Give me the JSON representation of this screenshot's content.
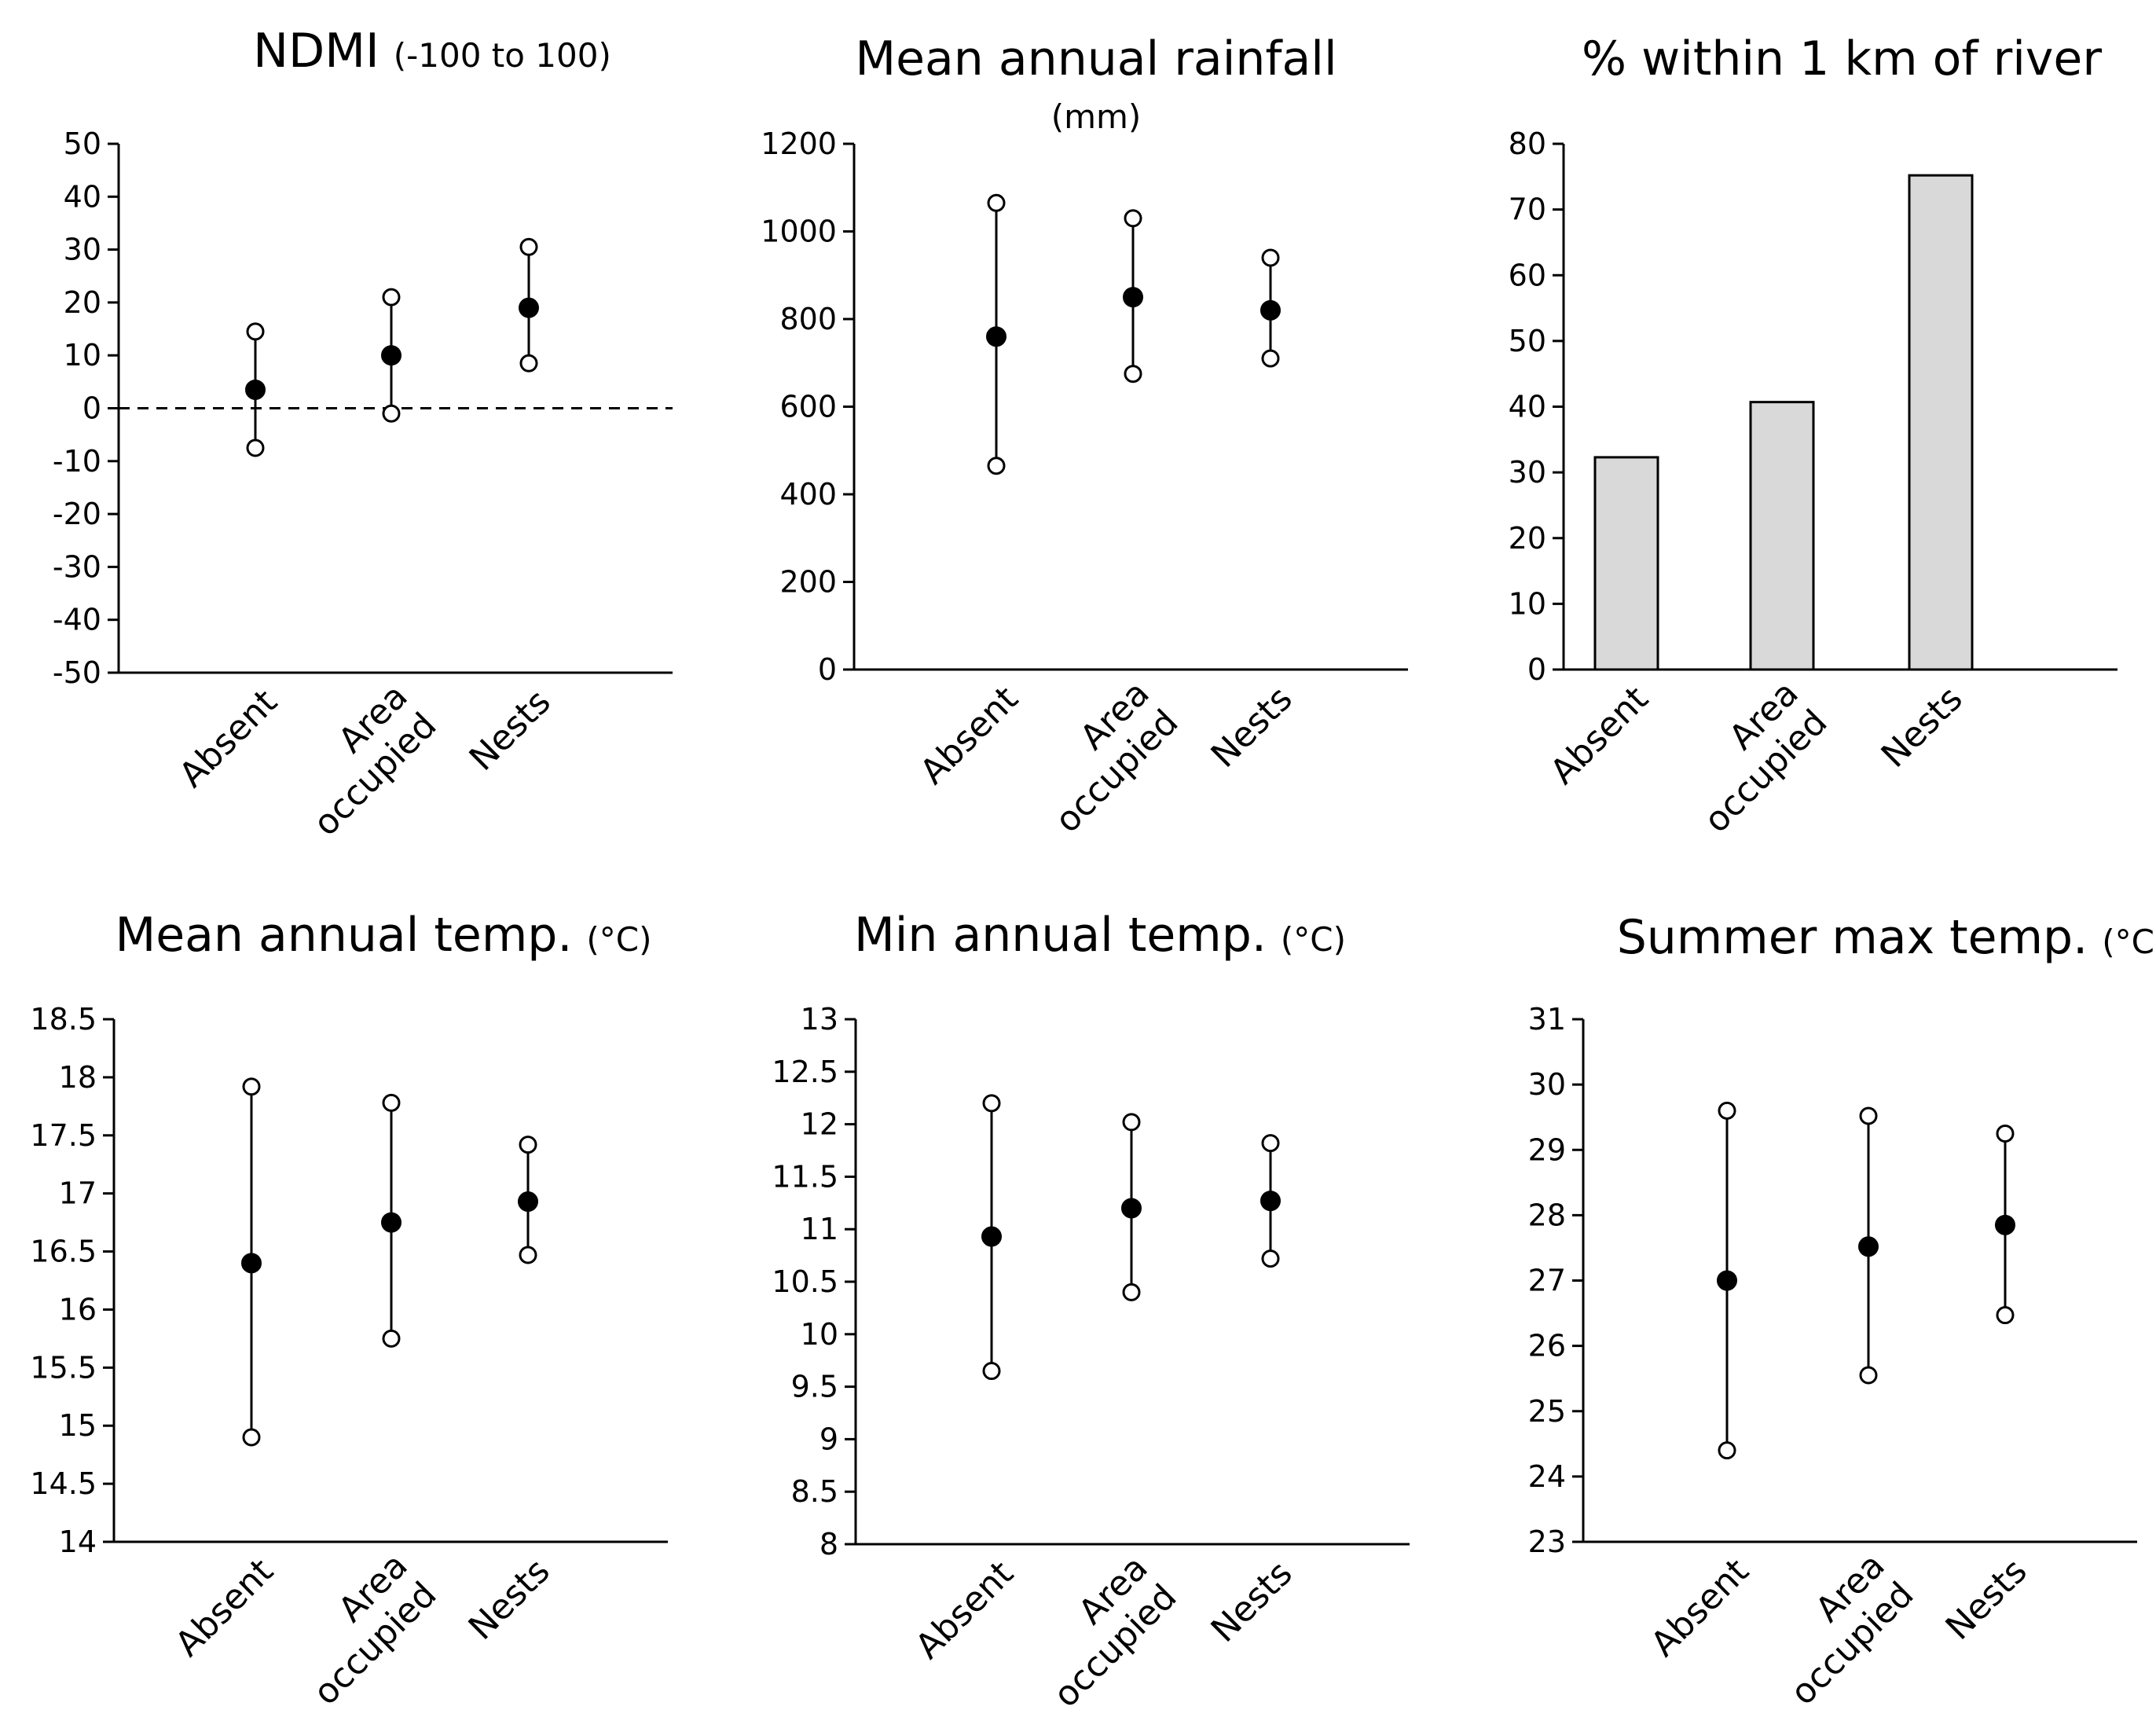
{
  "figure": {
    "background_color": "#ffffff",
    "mean_marker_color": "#000000",
    "range_marker_color": "#ffffff",
    "bar_fill_color": "#d9d9d9"
  },
  "chart_data": [
    {
      "type": "range",
      "title": "NDMI",
      "title_unit": "(-100 to 100)",
      "categories": [
        "Absent",
        "Area occupied",
        "Nests"
      ],
      "category_lines": [
        [
          "Absent"
        ],
        [
          "Area",
          "occupied"
        ],
        [
          "Nests"
        ]
      ],
      "series": [
        {
          "name": "Mean",
          "values": [
            3.5,
            10,
            19
          ]
        },
        {
          "name": "Lower",
          "values": [
            -7.5,
            -1,
            8.5
          ]
        },
        {
          "name": "Upper",
          "values": [
            14.5,
            21,
            30.5
          ]
        }
      ],
      "ylim": [
        -50,
        50
      ],
      "yticks": [
        "50",
        "40",
        "30",
        "20",
        "10",
        "0",
        "-10",
        "-20",
        "-30",
        "-40",
        "-50"
      ],
      "reference_line": {
        "y": 0,
        "style": "dashed"
      },
      "xlabel": "",
      "ylabel": ""
    },
    {
      "type": "range",
      "title": "Mean annual rainfall",
      "title_unit": "(mm)",
      "categories": [
        "Absent",
        "Area occupied",
        "Nests"
      ],
      "category_lines": [
        [
          "Absent"
        ],
        [
          "Area",
          "occupied"
        ],
        [
          "Nests"
        ]
      ],
      "series": [
        {
          "name": "Mean",
          "values": [
            760,
            850,
            820
          ]
        },
        {
          "name": "Lower",
          "values": [
            465,
            675,
            710
          ]
        },
        {
          "name": "Upper",
          "values": [
            1065,
            1030,
            940
          ]
        }
      ],
      "ylim": [
        0,
        1200
      ],
      "yticks": [
        "1200",
        "1000",
        "800",
        "600",
        "400",
        "200",
        "0"
      ],
      "xlabel": "",
      "ylabel": ""
    },
    {
      "type": "bar",
      "title": "% within 1 km of river",
      "title_unit": "",
      "categories": [
        "Absent",
        "Area occupied",
        "Nests"
      ],
      "category_lines": [
        [
          "Absent"
        ],
        [
          "Area",
          "occupied"
        ],
        [
          "Nests"
        ]
      ],
      "values": [
        32.3,
        40.7,
        75.2
      ],
      "ylim": [
        0,
        80
      ],
      "yticks": [
        "80",
        "70",
        "60",
        "50",
        "40",
        "30",
        "20",
        "10",
        "0"
      ],
      "xlabel": "",
      "ylabel": ""
    },
    {
      "type": "range",
      "title": "Mean annual temp.",
      "title_unit": "(°C)",
      "categories": [
        "Absent",
        "Area occupied",
        "Nests"
      ],
      "category_lines": [
        [
          "Absent"
        ],
        [
          "Area",
          "occupied"
        ],
        [
          "Nests"
        ]
      ],
      "series": [
        {
          "name": "Mean",
          "values": [
            16.4,
            16.75,
            16.93
          ]
        },
        {
          "name": "Lower",
          "values": [
            14.9,
            15.75,
            16.47
          ]
        },
        {
          "name": "Upper",
          "values": [
            17.92,
            17.78,
            17.42
          ]
        }
      ],
      "ylim": [
        14,
        18.5
      ],
      "yticks": [
        "18.5",
        "18",
        "17.5",
        "17",
        "16.5",
        "16",
        "15.5",
        "15",
        "14.5",
        "14"
      ],
      "xlabel": "",
      "ylabel": ""
    },
    {
      "type": "range",
      "title": "Min annual temp.",
      "title_unit": "(°C)",
      "categories": [
        "Absent",
        "Area occupied",
        "Nests"
      ],
      "category_lines": [
        [
          "Absent"
        ],
        [
          "Area",
          "occupied"
        ],
        [
          "Nests"
        ]
      ],
      "series": [
        {
          "name": "Mean",
          "values": [
            10.93,
            11.2,
            11.27
          ]
        },
        {
          "name": "Lower",
          "values": [
            9.65,
            10.4,
            10.72
          ]
        },
        {
          "name": "Upper",
          "values": [
            12.2,
            12.02,
            11.82
          ]
        }
      ],
      "ylim": [
        8,
        13
      ],
      "yticks": [
        "13",
        "12.5",
        "12",
        "11.5",
        "11",
        "10.5",
        "10",
        "9.5",
        "9",
        "8.5",
        "8"
      ],
      "xlabel": "",
      "ylabel": ""
    },
    {
      "type": "range",
      "title": "Summer max temp.",
      "title_unit": "(°C)",
      "categories": [
        "Absent",
        "Area occupied",
        "Nests"
      ],
      "category_lines": [
        [
          "Absent"
        ],
        [
          "Area",
          "occupied"
        ],
        [
          "Nests"
        ]
      ],
      "series": [
        {
          "name": "Mean",
          "values": [
            27,
            27.52,
            27.85
          ]
        },
        {
          "name": "Lower",
          "values": [
            24.4,
            25.55,
            26.47
          ]
        },
        {
          "name": "Upper",
          "values": [
            29.6,
            29.52,
            29.25
          ]
        }
      ],
      "ylim": [
        23,
        31
      ],
      "yticks": [
        "31",
        "30",
        "29",
        "28",
        "27",
        "26",
        "25",
        "24",
        "23"
      ],
      "xlabel": "",
      "ylabel": ""
    }
  ]
}
